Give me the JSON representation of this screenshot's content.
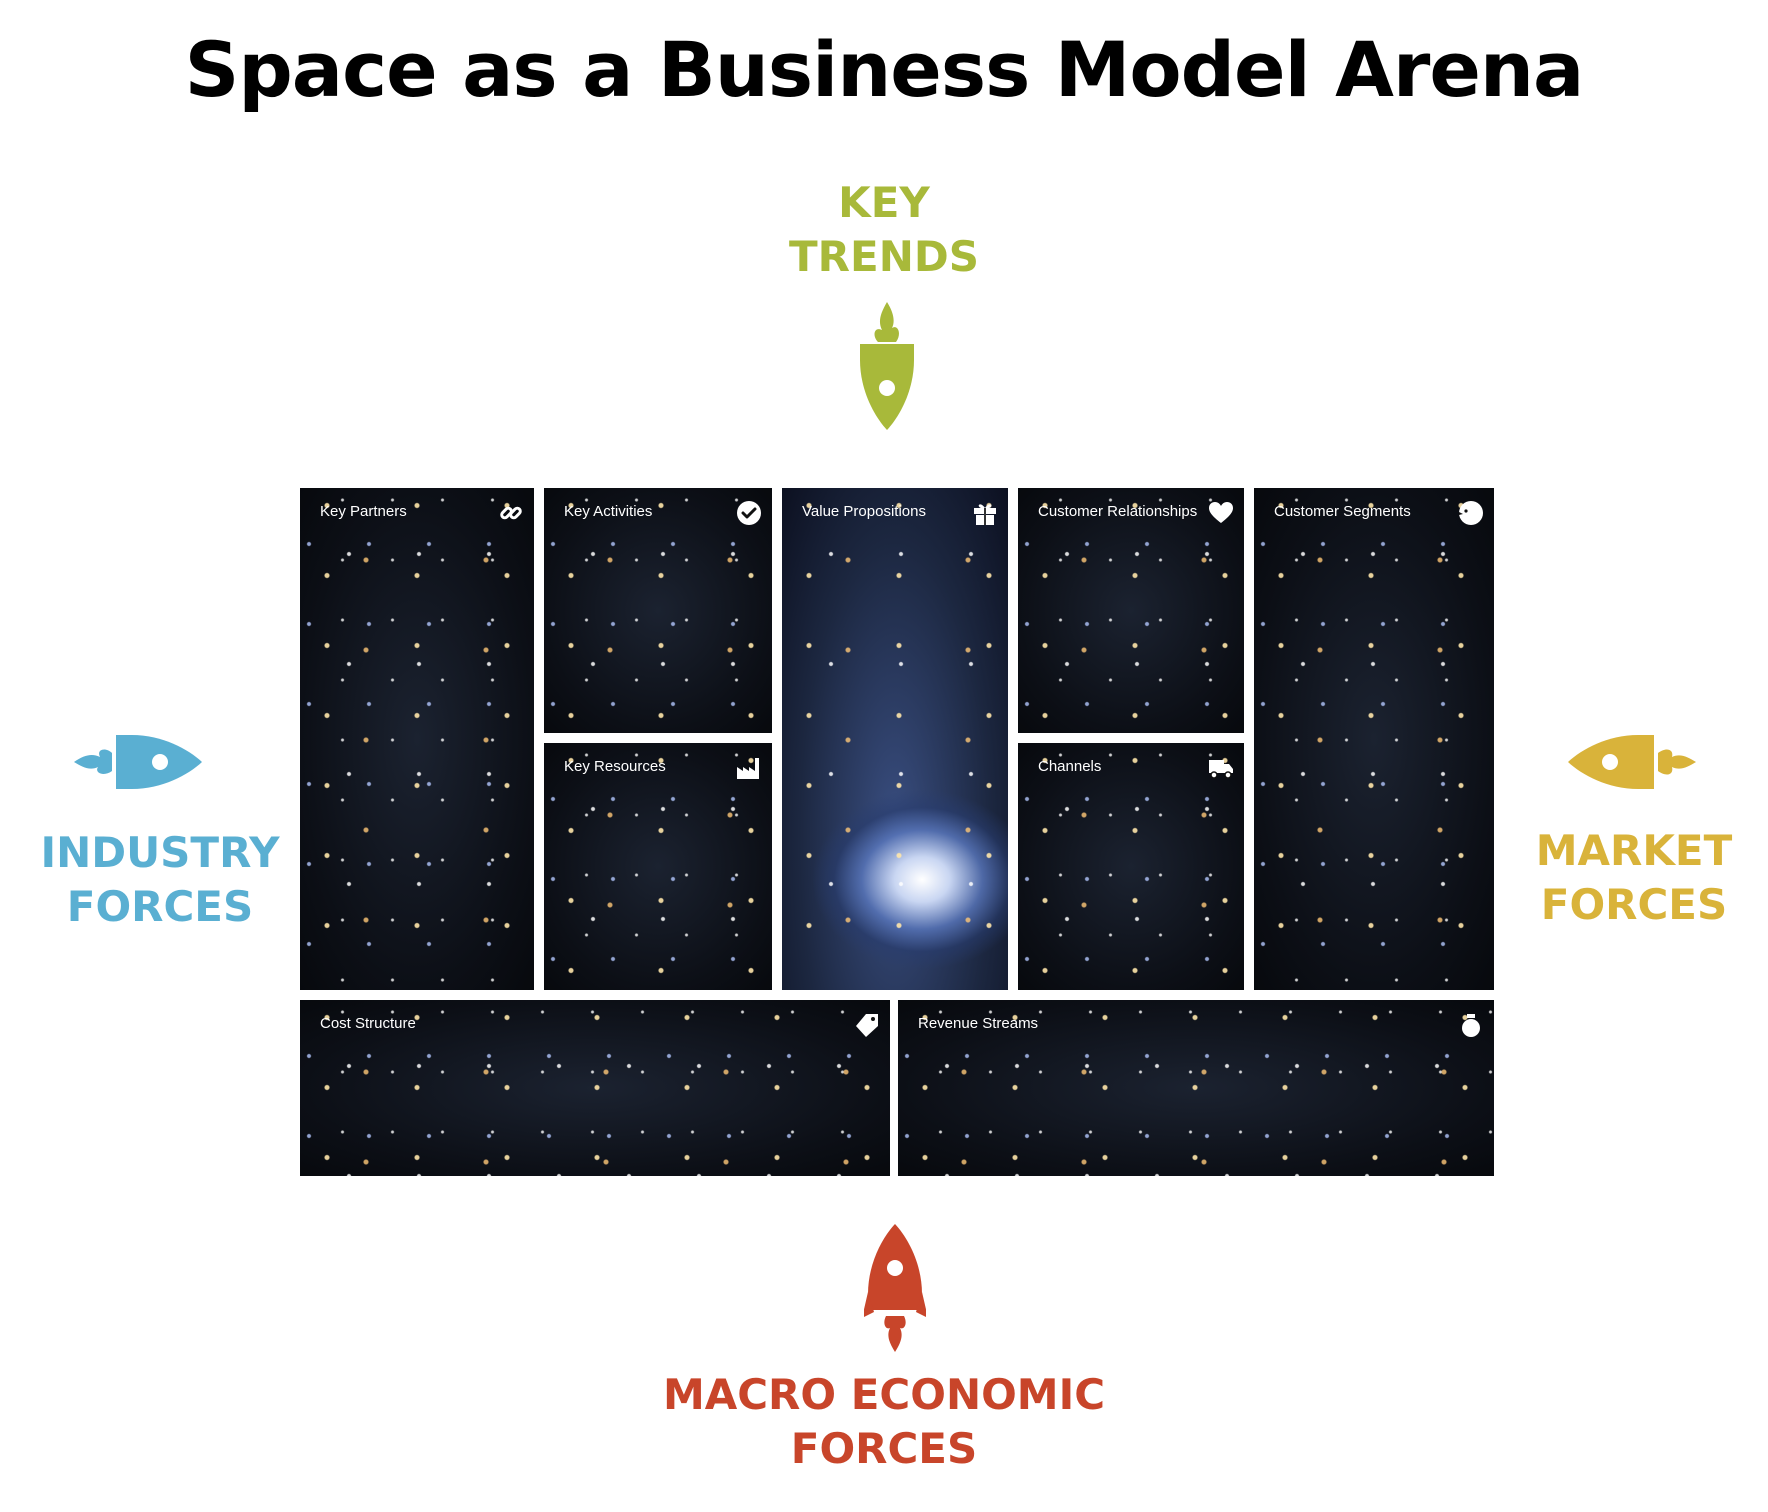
{
  "title": "Space as a Business Model Arena",
  "forces": {
    "top": {
      "line1": "KEY",
      "line2": "TRENDS",
      "color": "#a8b93a"
    },
    "left": {
      "line1": "INDUSTRY",
      "line2": "FORCES",
      "color": "#5aafd2"
    },
    "right": {
      "line1": "MARKET",
      "line2": "FORCES",
      "color": "#d9b33a"
    },
    "bottom": {
      "line1": "MACRO ECONOMIC",
      "line2": "FORCES",
      "color": "#c8452a"
    }
  },
  "canvas": {
    "blocks": {
      "key_partners": {
        "label": "Key Partners",
        "icon": "link-icon"
      },
      "key_activities": {
        "label": "Key Activities",
        "icon": "checkmark-icon"
      },
      "key_resources": {
        "label": "Key Resources",
        "icon": "factory-icon"
      },
      "value_propositions": {
        "label": "Value Propositions",
        "icon": "gift-icon"
      },
      "customer_relationships": {
        "label": "Customer Relationships",
        "icon": "heart-icon"
      },
      "channels": {
        "label": "Channels",
        "icon": "truck-icon"
      },
      "customer_segments": {
        "label": "Customer Segments",
        "icon": "person-icon"
      },
      "cost_structure": {
        "label": "Cost Structure",
        "icon": "tag-icon"
      },
      "revenue_streams": {
        "label": "Revenue Streams",
        "icon": "moneybag-icon"
      }
    }
  }
}
